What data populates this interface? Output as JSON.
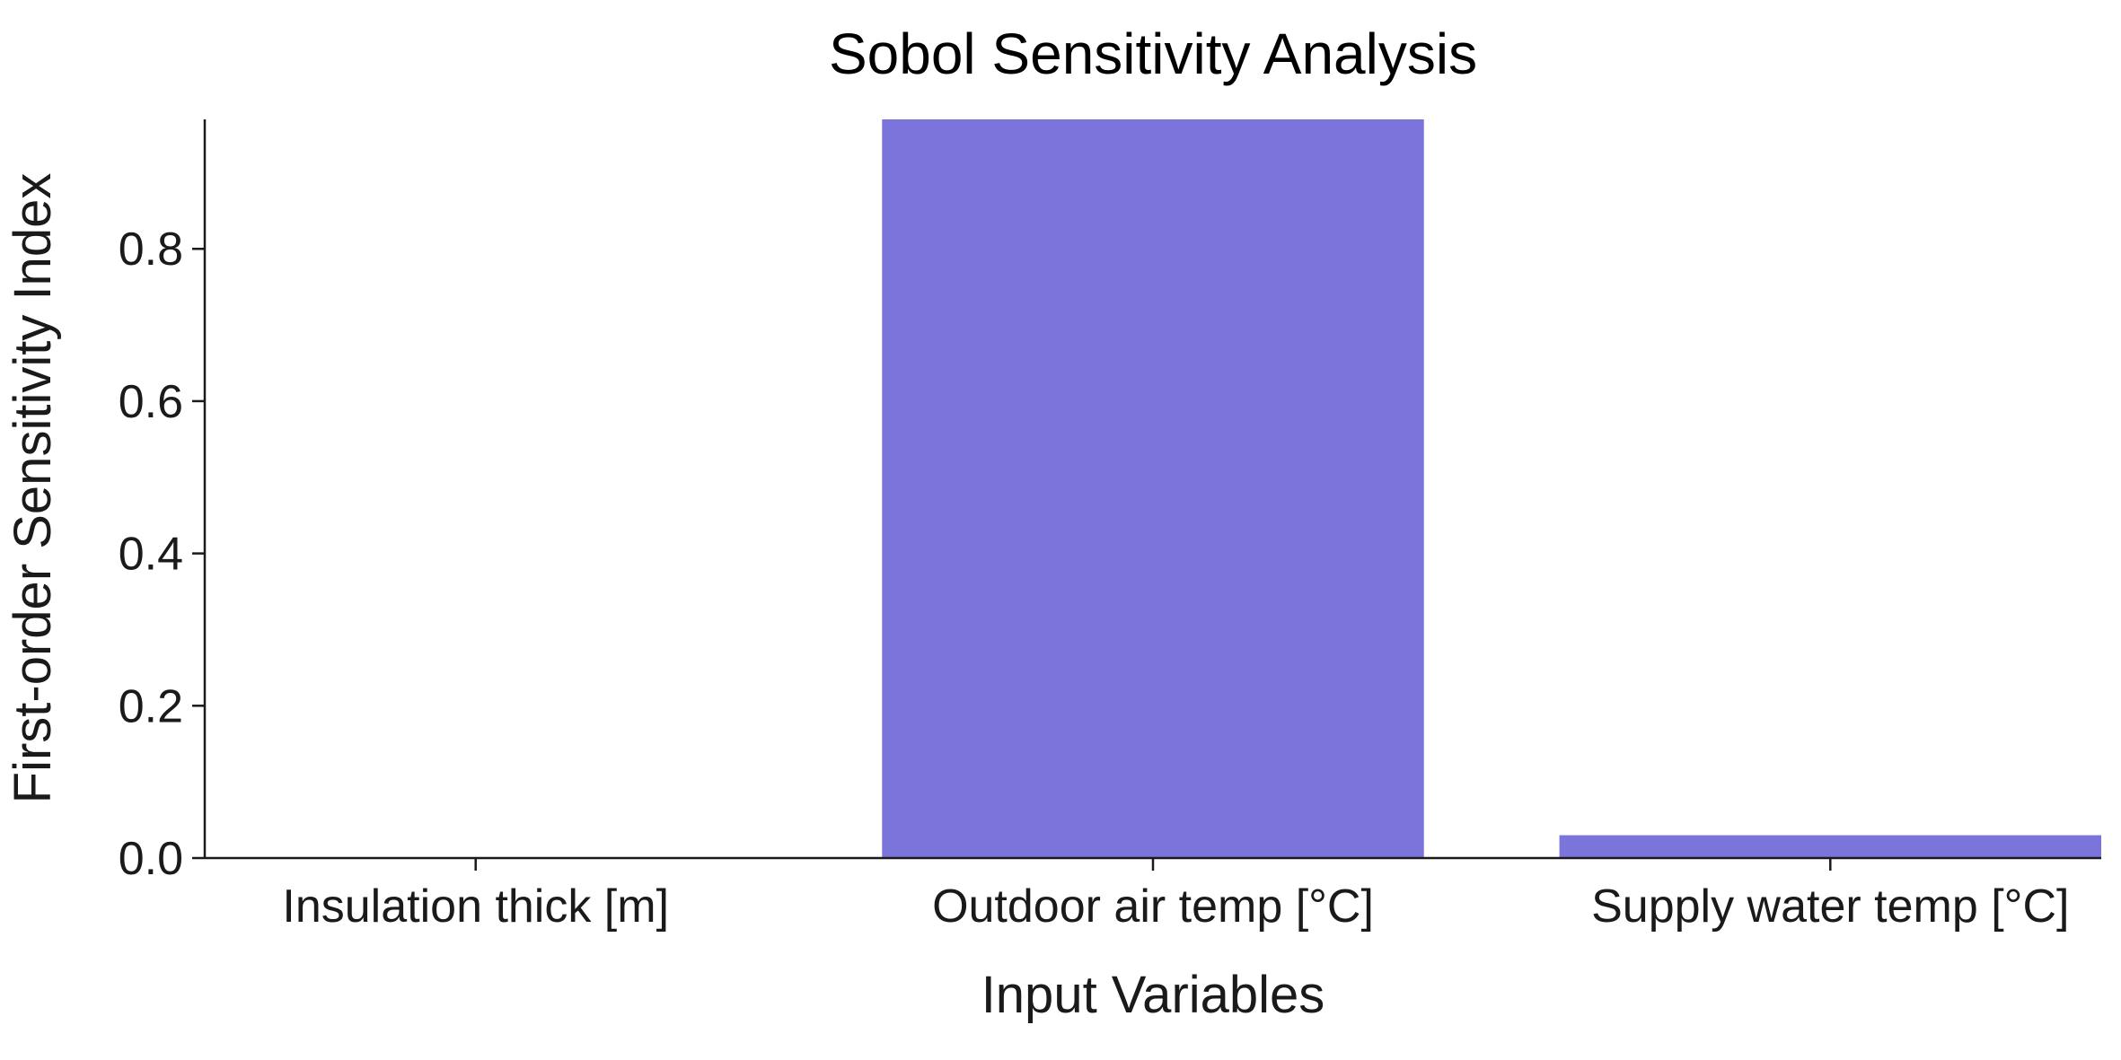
{
  "chart_data": {
    "type": "bar",
    "title": "Sobol Sensitivity Analysis",
    "xlabel": "Input Variables",
    "ylabel": "First-order Sensitivity Index",
    "categories": [
      "Insulation thick [m]",
      "Outdoor air temp [°C]",
      "Supply water temp [°C]"
    ],
    "values": [
      0.0,
      0.97,
      0.03
    ],
    "ylim": [
      0,
      0.97
    ],
    "yticks": [
      "0.0",
      "0.2",
      "0.4",
      "0.6",
      "0.8"
    ],
    "grid": false,
    "legend": "none",
    "bar_color": "#7b74da"
  }
}
